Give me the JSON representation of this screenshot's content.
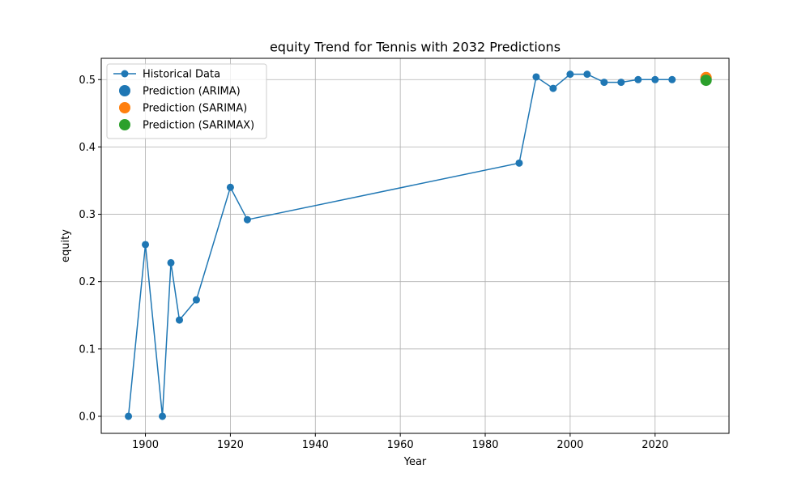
{
  "chart_data": {
    "type": "line",
    "title": "equity Trend for Tennis with 2032 Predictions",
    "xlabel": "Year",
    "ylabel": "equity",
    "xlim": [
      1889.6,
      2037.4
    ],
    "ylim": [
      -0.0253,
      0.5316
    ],
    "xticks": [
      1900,
      1920,
      1940,
      1960,
      1980,
      2000,
      2020
    ],
    "yticks": [
      0.0,
      0.1,
      0.2,
      0.3,
      0.4,
      0.5
    ],
    "xtick_labels": [
      "1900",
      "1920",
      "1940",
      "1960",
      "1980",
      "2000",
      "2020"
    ],
    "ytick_labels": [
      "0.0",
      "0.1",
      "0.2",
      "0.3",
      "0.4",
      "0.5"
    ],
    "grid": true,
    "legend_position": "top-left",
    "series": [
      {
        "name": "Historical Data",
        "style": "line-marker",
        "color": "#1f77b4",
        "x": [
          1896,
          1900,
          1904,
          1906,
          1908,
          1912,
          1920,
          1924,
          1988,
          1992,
          1996,
          2000,
          2004,
          2008,
          2012,
          2016,
          2020,
          2024
        ],
        "y": [
          0.0,
          0.255,
          0.0,
          0.228,
          0.143,
          0.173,
          0.34,
          0.292,
          0.376,
          0.504,
          0.487,
          0.508,
          0.508,
          0.496,
          0.496,
          0.5,
          0.5,
          0.5
        ]
      },
      {
        "name": "Prediction (ARIMA)",
        "style": "scatter",
        "color": "#1f77b4",
        "x": [
          2032
        ],
        "y": [
          0.501
        ]
      },
      {
        "name": "Prediction (SARIMA)",
        "style": "scatter",
        "color": "#ff7f0e",
        "x": [
          2032
        ],
        "y": [
          0.503
        ]
      },
      {
        "name": "Prediction (SARIMAX)",
        "style": "scatter",
        "color": "#2ca02c",
        "x": [
          2032
        ],
        "y": [
          0.499
        ]
      }
    ]
  }
}
